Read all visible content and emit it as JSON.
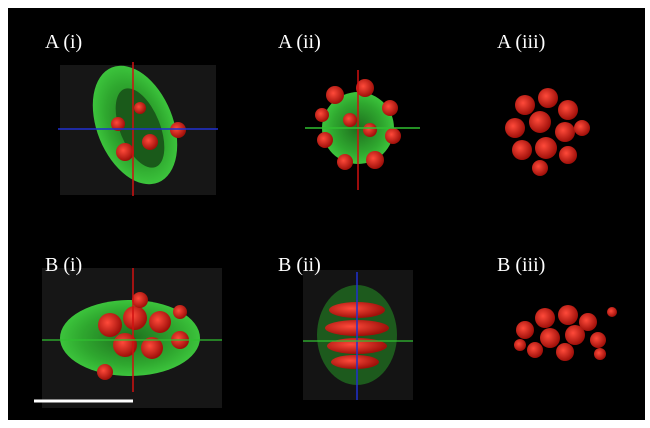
{
  "panels": [
    {
      "label": "A (i)"
    },
    {
      "label": "A (ii)"
    },
    {
      "label": "A (iii)"
    },
    {
      "label": "B (i)"
    },
    {
      "label": "B (ii)"
    },
    {
      "label": "B (iii)"
    }
  ]
}
